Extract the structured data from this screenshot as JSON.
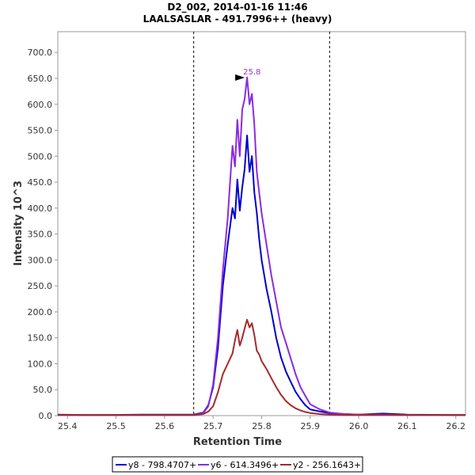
{
  "chart_data": {
    "type": "line",
    "title": "D2_002, 2014-01-16 11:46",
    "subtitle": "LAALSASLAR - 491.7996++ (heavy)",
    "xlabel": "Retention Time",
    "ylabel": "Intensity 10^3",
    "xlim": [
      25.38,
      26.22
    ],
    "ylim": [
      0,
      740
    ],
    "x_ticks": [
      "25.4",
      "25.5",
      "25.6",
      "25.7",
      "25.8",
      "25.9",
      "26.0",
      "26.1",
      "26.2"
    ],
    "y_ticks": [
      "0.0",
      "50.0",
      "100.0",
      "150.0",
      "200.0",
      "250.0",
      "300.0",
      "350.0",
      "400.0",
      "450.0",
      "500.0",
      "550.0",
      "600.0",
      "650.0",
      "700.0"
    ],
    "x_tick_values": [
      25.4,
      25.5,
      25.6,
      25.7,
      25.8,
      25.9,
      26.0,
      26.1,
      26.2
    ],
    "y_tick_values": [
      0,
      50,
      100,
      150,
      200,
      250,
      300,
      350,
      400,
      450,
      500,
      550,
      600,
      650,
      700
    ],
    "boundaries": [
      25.66,
      25.94
    ],
    "peak_annotation": {
      "x": 25.77,
      "y": 650,
      "label": "25.8",
      "color": "#9933cc"
    },
    "series": [
      {
        "name": "y8 - 798.4707+",
        "color": "#0000cc",
        "x": [
          25.38,
          25.45,
          25.55,
          25.62,
          25.66,
          25.68,
          25.69,
          25.7,
          25.71,
          25.72,
          25.73,
          25.74,
          25.745,
          25.75,
          25.755,
          25.76,
          25.765,
          25.77,
          25.775,
          25.78,
          25.785,
          25.79,
          25.795,
          25.8,
          25.81,
          25.82,
          25.83,
          25.84,
          25.85,
          25.86,
          25.87,
          25.88,
          25.89,
          25.9,
          25.92,
          25.94,
          25.97,
          26.0,
          26.05,
          26.1,
          26.22
        ],
        "y": [
          2,
          1,
          2,
          2,
          2,
          6,
          20,
          55,
          130,
          250,
          330,
          400,
          380,
          455,
          395,
          440,
          475,
          540,
          470,
          500,
          430,
          390,
          340,
          300,
          245,
          200,
          150,
          112,
          85,
          65,
          46,
          32,
          20,
          12,
          8,
          5,
          3,
          2,
          4,
          2,
          1
        ]
      },
      {
        "name": "y6 - 614.3496+",
        "color": "#8a2be2",
        "x": [
          25.38,
          25.45,
          25.55,
          25.62,
          25.66,
          25.68,
          25.69,
          25.7,
          25.71,
          25.72,
          25.73,
          25.74,
          25.745,
          25.75,
          25.755,
          25.76,
          25.765,
          25.77,
          25.775,
          25.78,
          25.785,
          25.79,
          25.795,
          25.8,
          25.81,
          25.82,
          25.83,
          25.84,
          25.85,
          25.86,
          25.87,
          25.88,
          25.89,
          25.9,
          25.92,
          25.94,
          25.97,
          26.0,
          26.05,
          26.1,
          26.22
        ],
        "y": [
          1,
          1,
          1,
          1,
          1,
          5,
          18,
          60,
          150,
          280,
          380,
          520,
          480,
          570,
          500,
          590,
          610,
          652,
          600,
          620,
          560,
          470,
          430,
          390,
          330,
          270,
          220,
          170,
          140,
          110,
          80,
          55,
          38,
          22,
          12,
          6,
          3,
          2,
          2,
          1,
          1
        ]
      },
      {
        "name": "y2 - 256.1643+",
        "color": "#a52a2a",
        "x": [
          25.38,
          25.45,
          25.55,
          25.62,
          25.66,
          25.68,
          25.69,
          25.7,
          25.71,
          25.72,
          25.73,
          25.74,
          25.745,
          25.75,
          25.755,
          25.76,
          25.765,
          25.77,
          25.775,
          25.78,
          25.785,
          25.79,
          25.795,
          25.8,
          25.81,
          25.82,
          25.83,
          25.84,
          25.85,
          25.86,
          25.87,
          25.88,
          25.89,
          25.9,
          25.92,
          25.94,
          25.97,
          26.0,
          26.05,
          26.1,
          26.22
        ],
        "y": [
          1,
          1,
          1,
          1,
          1,
          3,
          8,
          18,
          45,
          80,
          100,
          120,
          145,
          165,
          135,
          150,
          168,
          185,
          170,
          178,
          155,
          125,
          118,
          105,
          90,
          72,
          55,
          40,
          28,
          20,
          14,
          10,
          7,
          5,
          3,
          2,
          1,
          1,
          1,
          1,
          1
        ]
      }
    ],
    "legend_position": "bottom-center"
  }
}
